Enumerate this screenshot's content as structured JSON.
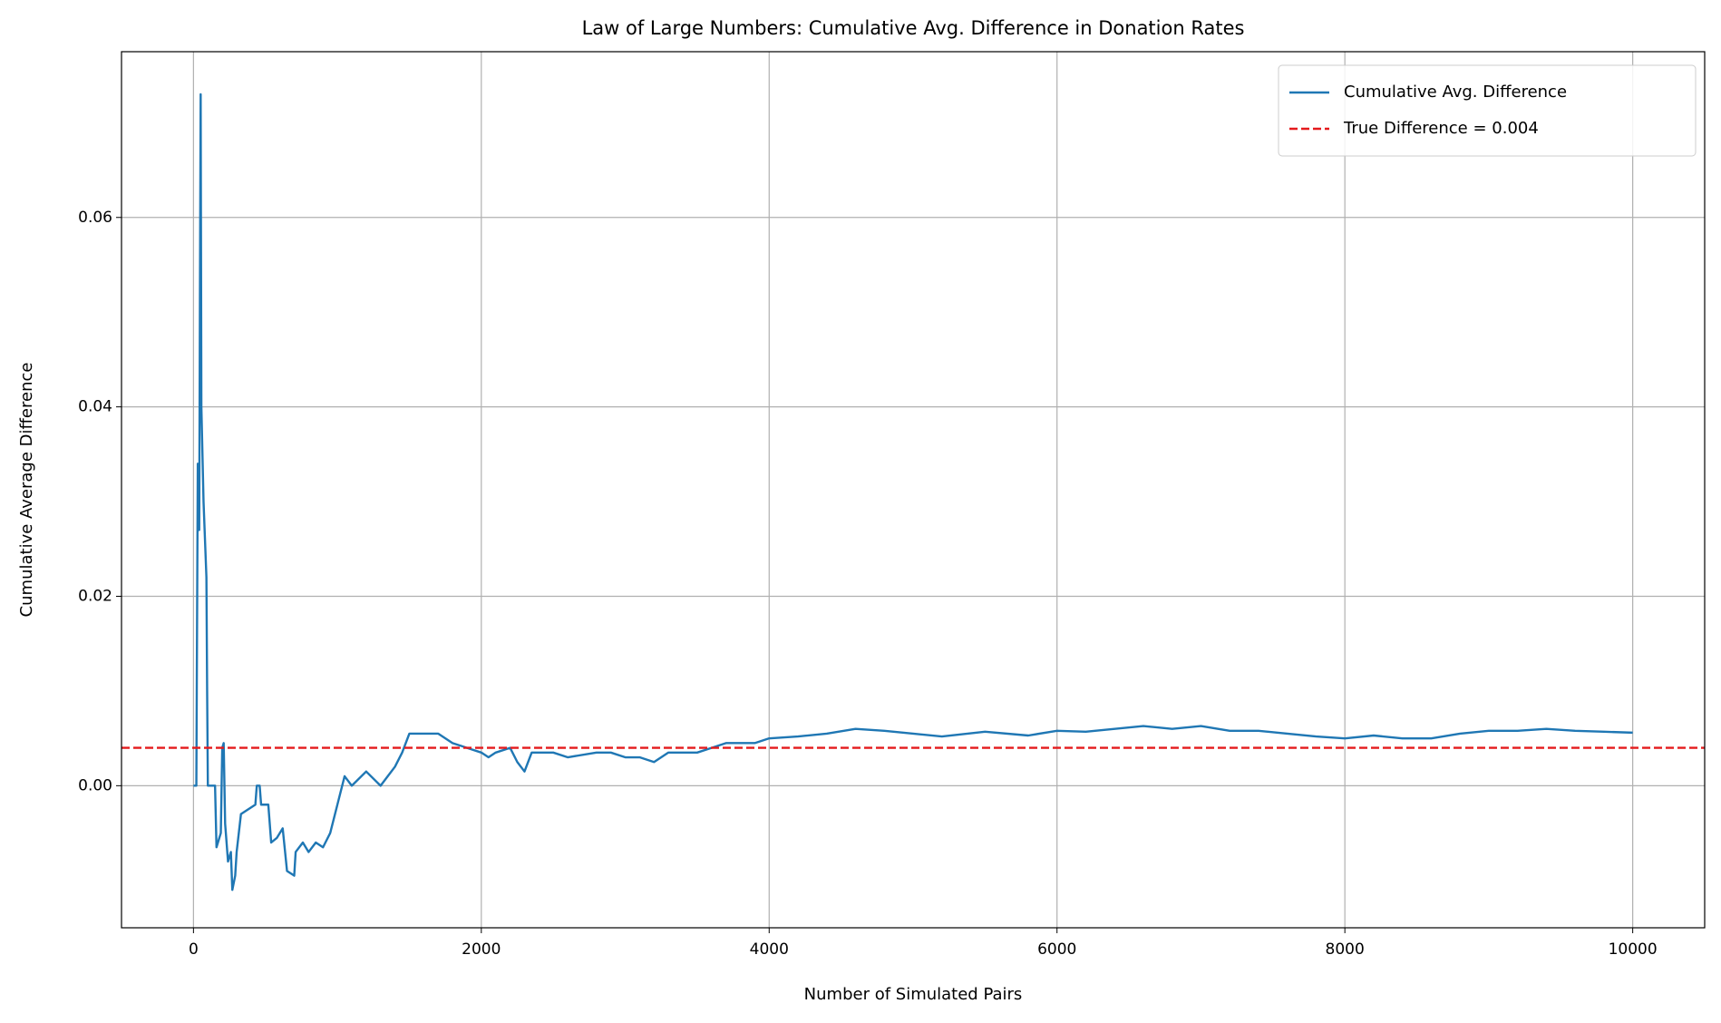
{
  "chart_data": {
    "type": "line",
    "title": "Law of Large Numbers: Cumulative Avg. Difference in Donation Rates",
    "xlabel": "Number of Simulated Pairs",
    "ylabel": "Cumulative Average Difference",
    "x": [
      0,
      20,
      30,
      40,
      45,
      50,
      55,
      70,
      90,
      95,
      100,
      150,
      160,
      190,
      200,
      210,
      220,
      240,
      260,
      270,
      290,
      300,
      330,
      430,
      440,
      460,
      470,
      520,
      540,
      580,
      620,
      650,
      700,
      710,
      760,
      800,
      850,
      900,
      950,
      1000,
      1050,
      1100,
      1200,
      1300,
      1350,
      1400,
      1450,
      1500,
      1600,
      1700,
      1800,
      1900,
      2000,
      2050,
      2100,
      2200,
      2250,
      2300,
      2350,
      2500,
      2600,
      2800,
      2900,
      3000,
      3100,
      3200,
      3300,
      3500,
      3600,
      3700,
      3900,
      4000,
      4200,
      4400,
      4600,
      4800,
      5000,
      5200,
      5500,
      5800,
      6000,
      6200,
      6400,
      6600,
      6800,
      7000,
      7200,
      7400,
      7600,
      7800,
      8000,
      8200,
      8400,
      8600,
      8800,
      9000,
      9200,
      9400,
      9600,
      9800,
      10000
    ],
    "series": [
      {
        "name": "Cumulative Avg. Difference",
        "color": "#1f77b4",
        "values": [
          0,
          0,
          0.034,
          0.027,
          0.052,
          0.073,
          0.04,
          0.03,
          0.022,
          0.01,
          0,
          0,
          -0.0065,
          -0.005,
          0.004,
          0.0045,
          -0.004,
          -0.008,
          -0.007,
          -0.011,
          -0.0095,
          -0.007,
          -0.003,
          -0.002,
          0,
          0,
          -0.002,
          -0.002,
          -0.006,
          -0.0055,
          -0.0045,
          -0.009,
          -0.0095,
          -0.007,
          -0.006,
          -0.007,
          -0.006,
          -0.0065,
          -0.005,
          -0.002,
          0.001,
          0,
          0.0015,
          0,
          0.001,
          0.002,
          0.0035,
          0.0055,
          0.0055,
          0.0055,
          0.0045,
          0.004,
          0.0035,
          0.003,
          0.0035,
          0.004,
          0.0025,
          0.0015,
          0.0035,
          0.0035,
          0.003,
          0.0035,
          0.0035,
          0.003,
          0.003,
          0.0025,
          0.0035,
          0.0035,
          0.004,
          0.0045,
          0.0045,
          0.005,
          0.0052,
          0.0055,
          0.006,
          0.0058,
          0.0055,
          0.0052,
          0.0057,
          0.0053,
          0.0058,
          0.0057,
          0.006,
          0.0063,
          0.006,
          0.0063,
          0.0058,
          0.0058,
          0.0055,
          0.0052,
          0.005,
          0.0053,
          0.005,
          0.005,
          0.0055,
          0.0058,
          0.0058,
          0.006,
          0.0058,
          0.0057,
          0.0056
        ]
      }
    ],
    "hlines": [
      {
        "name": "True Difference = 0.004",
        "value": 0.004,
        "color": "#e41a1c"
      }
    ],
    "xlim": [
      -500,
      10500
    ],
    "ylim": [
      -0.015,
      0.0775
    ],
    "xticks": [
      0,
      2000,
      4000,
      6000,
      8000,
      10000
    ],
    "yticks": [
      {
        "value": 0,
        "label": "0.00"
      },
      {
        "value": 0.02,
        "label": "0.02"
      },
      {
        "value": 0.04,
        "label": "0.04"
      },
      {
        "value": 0.06,
        "label": "0.06"
      }
    ],
    "grid": true,
    "legend": "upper right"
  }
}
